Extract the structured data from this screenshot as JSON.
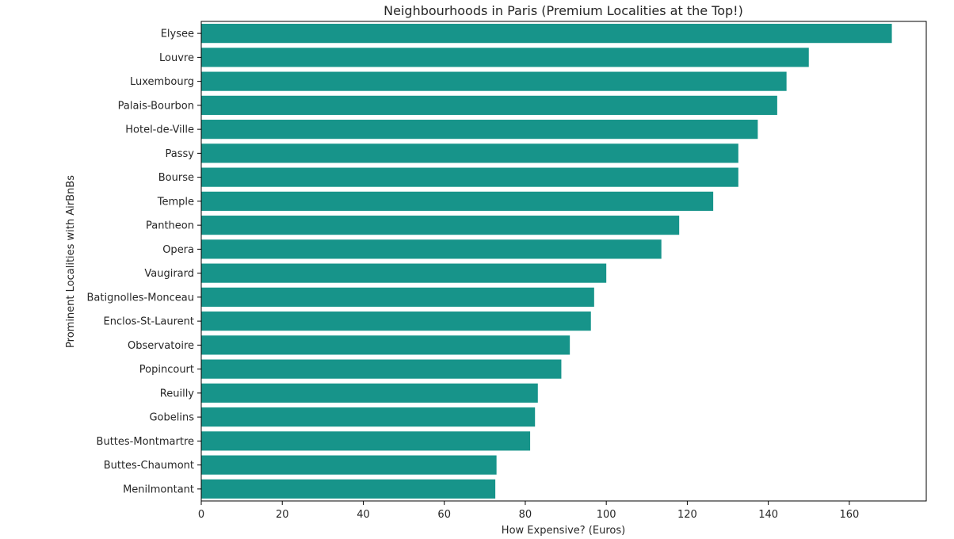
{
  "chart_data": {
    "type": "bar",
    "orientation": "horizontal",
    "title": "Neighbourhoods in Paris (Premium Localities at the Top!)",
    "xlabel": "How Expensive? (Euros)",
    "ylabel": "Prominent Localities with AirBnBs",
    "xlim": [
      0,
      179
    ],
    "xticks": [
      0,
      20,
      40,
      60,
      80,
      100,
      120,
      140,
      160
    ],
    "bar_color": "#17948a",
    "grid": false,
    "categories": [
      "Elysee",
      "Louvre",
      "Luxembourg",
      "Palais-Bourbon",
      "Hotel-de-Ville",
      "Passy",
      "Bourse",
      "Temple",
      "Pantheon",
      "Opera",
      "Vaugirard",
      "Batignolles-Monceau",
      "Enclos-St-Laurent",
      "Observatoire",
      "Popincourt",
      "Reuilly",
      "Gobelins",
      "Buttes-Montmartre",
      "Buttes-Chaumont",
      "Menilmontant"
    ],
    "values": [
      170.5,
      150.0,
      144.5,
      142.2,
      137.4,
      132.6,
      132.6,
      126.4,
      118.0,
      113.6,
      100.0,
      97.0,
      96.2,
      91.0,
      88.9,
      83.1,
      82.4,
      81.2,
      72.9,
      72.6
    ]
  }
}
